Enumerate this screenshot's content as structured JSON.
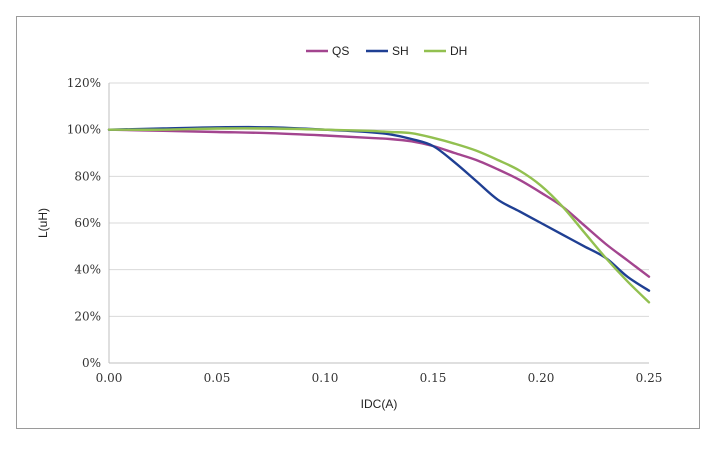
{
  "chart_data": {
    "type": "line",
    "title": "",
    "xlabel": "IDC(A)",
    "ylabel": "L(uH)",
    "xlim": [
      0,
      0.25
    ],
    "ylim": [
      0,
      120
    ],
    "x_ticks": [
      "0.00",
      "0.05",
      "0.10",
      "0.15",
      "0.20",
      "0.25"
    ],
    "y_ticks": [
      "0%",
      "20%",
      "40%",
      "60%",
      "80%",
      "100%",
      "120%"
    ],
    "grid": "horizontal",
    "legend": "top-center",
    "series": [
      {
        "name": "QS",
        "color": "#a3458f",
        "x": [
          0,
          0.025,
          0.05,
          0.075,
          0.1,
          0.12,
          0.13,
          0.14,
          0.15,
          0.16,
          0.17,
          0.18,
          0.19,
          0.2,
          0.21,
          0.22,
          0.23,
          0.24,
          0.25
        ],
        "y": [
          100,
          99.5,
          99,
          98.5,
          97.5,
          96.5,
          96,
          95,
          93,
          90,
          87,
          83,
          78.5,
          73,
          67,
          59,
          51,
          44,
          37
        ]
      },
      {
        "name": "SH",
        "color": "#1f3f93",
        "x": [
          0,
          0.025,
          0.05,
          0.075,
          0.1,
          0.12,
          0.13,
          0.14,
          0.15,
          0.16,
          0.17,
          0.18,
          0.19,
          0.2,
          0.21,
          0.22,
          0.23,
          0.24,
          0.25
        ],
        "y": [
          100,
          100.5,
          101,
          101,
          100,
          99,
          98,
          96,
          93,
          86,
          78,
          70,
          65,
          60,
          55,
          50,
          45,
          37,
          31
        ]
      },
      {
        "name": "DH",
        "color": "#92c050",
        "x": [
          0,
          0.025,
          0.05,
          0.075,
          0.1,
          0.12,
          0.13,
          0.14,
          0.15,
          0.16,
          0.17,
          0.18,
          0.19,
          0.2,
          0.21,
          0.22,
          0.23,
          0.24,
          0.25
        ],
        "y": [
          100,
          100,
          100.5,
          100.5,
          100,
          99.5,
          99,
          98.5,
          96.5,
          94,
          91,
          87,
          82.5,
          76,
          67,
          56,
          45,
          35,
          26
        ]
      }
    ]
  }
}
